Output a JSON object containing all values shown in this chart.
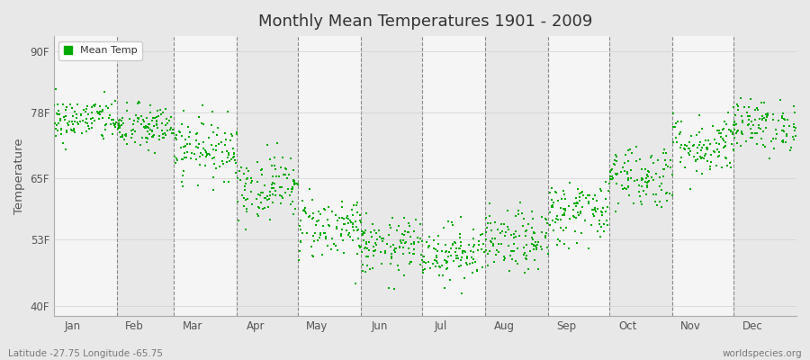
{
  "title": "Monthly Mean Temperatures 1901 - 2009",
  "ylabel": "Temperature",
  "xlabel_labels": [
    "Jan",
    "Feb",
    "Mar",
    "Apr",
    "May",
    "Jun",
    "Jul",
    "Aug",
    "Sep",
    "Oct",
    "Nov",
    "Dec"
  ],
  "ytick_labels": [
    "40F",
    "53F",
    "65F",
    "78F",
    "90F"
  ],
  "ytick_values": [
    40,
    53,
    65,
    78,
    90
  ],
  "ylim": [
    38,
    93
  ],
  "legend_label": "Mean Temp",
  "dot_color": "#00aa00",
  "bg_color": "#e8e8e8",
  "plot_bg_color": "#efefef",
  "footer_left": "Latitude -27.75 Longitude -65.75",
  "footer_right": "worldspecies.org",
  "monthly_means": [
    76.5,
    75.0,
    71.0,
    63.5,
    55.5,
    51.5,
    50.5,
    52.5,
    58.5,
    65.5,
    71.5,
    75.5
  ],
  "monthly_stds": [
    2.2,
    2.3,
    3.0,
    3.2,
    3.2,
    2.8,
    2.8,
    3.0,
    3.2,
    3.2,
    3.0,
    2.5
  ],
  "n_years": 109,
  "num_months": 12,
  "days_in_month": [
    31,
    28,
    31,
    30,
    31,
    30,
    31,
    31,
    30,
    31,
    30,
    31
  ]
}
